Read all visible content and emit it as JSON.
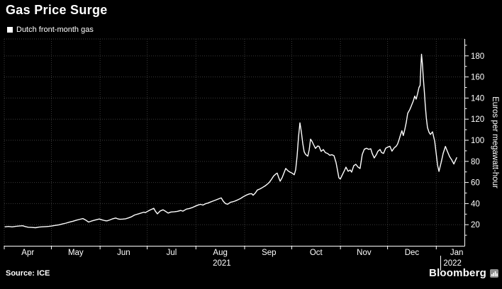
{
  "title": "Gas Price Surge",
  "legend": {
    "label": "Dutch front-month gas",
    "swatch_color": "#ffffff"
  },
  "source": "Source: ICE",
  "brand": {
    "name": "Bloomberg",
    "icon": "mini-bar-chart-icon"
  },
  "colors": {
    "background": "#000000",
    "line": "#ffffff",
    "grid": "#3b3b3b",
    "axis": "#ffffff",
    "text": "#ffffff"
  },
  "chart_data": {
    "type": "line",
    "series_name": "Dutch front-month gas",
    "unit": "Euros per megawatt-hour",
    "ylabel": "Euros per megawatt-hour",
    "ylim": [
      0,
      196
    ],
    "yticks": {
      "major": [
        20,
        40,
        60,
        80,
        100,
        120,
        140,
        160,
        180
      ],
      "minor_step": 10,
      "minor_max": 190
    },
    "xticks": {
      "x_unit": "days_since_2021-04-01",
      "months": [
        {
          "label": "Apr",
          "day": 0,
          "mid": 15
        },
        {
          "label": "May",
          "day": 30,
          "mid": 45.5
        },
        {
          "label": "Jun",
          "day": 61,
          "mid": 76
        },
        {
          "label": "Jul",
          "day": 91,
          "mid": 106.5
        },
        {
          "label": "Aug",
          "day": 122,
          "mid": 137.5
        },
        {
          "label": "Sep",
          "day": 153,
          "mid": 168.5
        },
        {
          "label": "Oct",
          "day": 183,
          "mid": 198.5
        },
        {
          "label": "Nov",
          "day": 214,
          "mid": 229
        },
        {
          "label": "Dec",
          "day": 244,
          "mid": 259.5
        },
        {
          "label": "Jan",
          "day": 275,
          "mid": 288
        }
      ],
      "years": [
        {
          "label": "2021",
          "day": 138.5
        },
        {
          "label": "2022",
          "day": 285.3
        }
      ],
      "year_separator_day": 277.8
    },
    "points": [
      [
        0.5,
        18
      ],
      [
        2.7,
        18.3
      ],
      [
        5,
        17.9
      ],
      [
        7.2,
        18.4
      ],
      [
        9.5,
        18.7
      ],
      [
        11.7,
        19
      ],
      [
        13.5,
        18.2
      ],
      [
        15.3,
        17.6
      ],
      [
        17.6,
        17.4
      ],
      [
        19.9,
        17.1
      ],
      [
        22.1,
        17.7
      ],
      [
        24.4,
        18
      ],
      [
        26.6,
        18.2
      ],
      [
        28.4,
        18.4
      ],
      [
        30.2,
        18.7
      ],
      [
        32.5,
        19.3
      ],
      [
        34.8,
        19.9
      ],
      [
        37,
        20.7
      ],
      [
        39.3,
        21.5
      ],
      [
        41.5,
        22.4
      ],
      [
        43.8,
        23.3
      ],
      [
        46,
        24.3
      ],
      [
        48.3,
        25.2
      ],
      [
        50.1,
        25.8
      ],
      [
        51.9,
        24.3
      ],
      [
        53.7,
        22.5
      ],
      [
        55.5,
        23.4
      ],
      [
        57.3,
        24.2
      ],
      [
        59.1,
        24.9
      ],
      [
        60.5,
        25.4
      ],
      [
        62.3,
        24.6
      ],
      [
        64.1,
        23.8
      ],
      [
        65.4,
        23.6
      ],
      [
        67.2,
        24.5
      ],
      [
        69,
        25.6
      ],
      [
        70.9,
        26.3
      ],
      [
        72.2,
        25.6
      ],
      [
        73.6,
        25.1
      ],
      [
        75.4,
        25.3
      ],
      [
        77.2,
        25.6
      ],
      [
        79,
        26.4
      ],
      [
        80.8,
        27.4
      ],
      [
        83,
        29.2
      ],
      [
        85.8,
        30.4
      ],
      [
        88.9,
        31.9
      ],
      [
        89.8,
        31.4
      ],
      [
        91.2,
        32.6
      ],
      [
        93,
        34
      ],
      [
        95.2,
        35.5
      ],
      [
        96.1,
        33
      ],
      [
        97.5,
        30.3
      ],
      [
        99.3,
        33
      ],
      [
        101.1,
        34.1
      ],
      [
        102.5,
        32.8
      ],
      [
        104.3,
        31
      ],
      [
        106.1,
        32
      ],
      [
        108.3,
        32.3
      ],
      [
        110.1,
        32.6
      ],
      [
        112.4,
        33.5
      ],
      [
        113.7,
        32.8
      ],
      [
        116,
        34.8
      ],
      [
        117.8,
        35.3
      ],
      [
        119.6,
        36.2
      ],
      [
        121.9,
        37.7
      ],
      [
        123.7,
        38.8
      ],
      [
        125,
        39.3
      ],
      [
        126.4,
        38.6
      ],
      [
        128.2,
        39.9
      ],
      [
        129.5,
        40.4
      ],
      [
        131.3,
        41.5
      ],
      [
        132.7,
        42.3
      ],
      [
        134.5,
        43.3
      ],
      [
        136.3,
        44.4
      ],
      [
        138.1,
        45.4
      ],
      [
        139.5,
        42
      ],
      [
        140.8,
        40
      ],
      [
        142.2,
        39.4
      ],
      [
        144,
        41.2
      ],
      [
        145.3,
        41.7
      ],
      [
        146.7,
        42.3
      ],
      [
        148.5,
        43.4
      ],
      [
        150.3,
        44.7
      ],
      [
        151.6,
        46
      ],
      [
        153,
        47.2
      ],
      [
        154.3,
        48.2
      ],
      [
        156.1,
        49.2
      ],
      [
        157.5,
        49.4
      ],
      [
        158.4,
        47.9
      ],
      [
        159.8,
        50
      ],
      [
        161.1,
        52.8
      ],
      [
        162.9,
        54
      ],
      [
        164.3,
        55.2
      ],
      [
        166.1,
        56.8
      ],
      [
        167.4,
        58.3
      ],
      [
        168.8,
        60.3
      ],
      [
        170.1,
        63
      ],
      [
        171.5,
        66.2
      ],
      [
        172.8,
        68
      ],
      [
        173.7,
        68.9
      ],
      [
        174.6,
        65
      ],
      [
        175.6,
        61.2
      ],
      [
        176.9,
        64.5
      ],
      [
        177.8,
        68
      ],
      [
        179.2,
        73.3
      ],
      [
        180.5,
        71.2
      ],
      [
        181.9,
        69.8
      ],
      [
        183.2,
        68.9
      ],
      [
        184.6,
        67.3
      ],
      [
        185.5,
        72
      ],
      [
        186.4,
        85
      ],
      [
        187.3,
        103
      ],
      [
        188.2,
        116.5
      ],
      [
        189.1,
        108
      ],
      [
        190,
        97
      ],
      [
        190.9,
        89
      ],
      [
        191.8,
        86.6
      ],
      [
        193.2,
        85
      ],
      [
        194.1,
        91
      ],
      [
        195,
        101
      ],
      [
        195.9,
        99
      ],
      [
        197.2,
        95
      ],
      [
        198.1,
        92.3
      ],
      [
        199.5,
        94.6
      ],
      [
        200.4,
        94.2
      ],
      [
        201.7,
        89.5
      ],
      [
        203.1,
        91.2
      ],
      [
        204.4,
        88.3
      ],
      [
        205.8,
        87.5
      ],
      [
        207.2,
        85.8
      ],
      [
        208.5,
        86.3
      ],
      [
        209.9,
        85.3
      ],
      [
        211.2,
        79
      ],
      [
        212.1,
        72
      ],
      [
        213,
        64.5
      ],
      [
        213.9,
        63.2
      ],
      [
        215.3,
        67.5
      ],
      [
        216.6,
        71.5
      ],
      [
        217.5,
        74.5
      ],
      [
        218.9,
        70.6
      ],
      [
        220.2,
        71.8
      ],
      [
        221.1,
        69.8
      ],
      [
        222.5,
        76
      ],
      [
        223.8,
        77.2
      ],
      [
        225.2,
        74.6
      ],
      [
        226.5,
        73.2
      ],
      [
        227.9,
        86.5
      ],
      [
        229.2,
        91.5
      ],
      [
        230.6,
        92.4
      ],
      [
        231.9,
        91.4
      ],
      [
        233.3,
        91.9
      ],
      [
        234.2,
        87.5
      ],
      [
        235.5,
        83.2
      ],
      [
        236.9,
        86.5
      ],
      [
        237.8,
        89.5
      ],
      [
        239.2,
        91.3
      ],
      [
        240.1,
        88.5
      ],
      [
        241.4,
        87.5
      ],
      [
        242.8,
        92.5
      ],
      [
        244.1,
        93.5
      ],
      [
        245.5,
        94.3
      ],
      [
        246.8,
        89.7
      ],
      [
        248.2,
        92.7
      ],
      [
        249.6,
        94.5
      ],
      [
        250.4,
        96.5
      ],
      [
        251.3,
        100.5
      ],
      [
        252.2,
        105
      ],
      [
        253.1,
        109
      ],
      [
        254,
        104.5
      ],
      [
        255,
        110.5
      ],
      [
        255.9,
        117
      ],
      [
        256.8,
        125.5
      ],
      [
        258.1,
        129
      ],
      [
        259,
        132
      ],
      [
        260.4,
        137.5
      ],
      [
        261.3,
        141.8
      ],
      [
        262.2,
        139
      ],
      [
        263.1,
        144
      ],
      [
        264,
        150
      ],
      [
        264.7,
        152
      ],
      [
        265.2,
        170
      ],
      [
        265.6,
        181.5
      ],
      [
        266.2,
        172
      ],
      [
        266.7,
        160
      ],
      [
        267.4,
        146
      ],
      [
        268,
        133
      ],
      [
        268.7,
        121
      ],
      [
        269.4,
        112
      ],
      [
        270.4,
        107.5
      ],
      [
        271.3,
        105.5
      ],
      [
        272.6,
        108
      ],
      [
        274,
        99
      ],
      [
        274.9,
        88
      ],
      [
        275.8,
        76.5
      ],
      [
        276.7,
        70.5
      ],
      [
        278.1,
        79
      ],
      [
        279.4,
        87.5
      ],
      [
        280.8,
        94.2
      ],
      [
        282.1,
        89.5
      ],
      [
        283.5,
        84.5
      ],
      [
        284.8,
        81.5
      ],
      [
        286.2,
        77.5
      ],
      [
        287.1,
        80.5
      ],
      [
        288,
        83.5
      ]
    ]
  }
}
